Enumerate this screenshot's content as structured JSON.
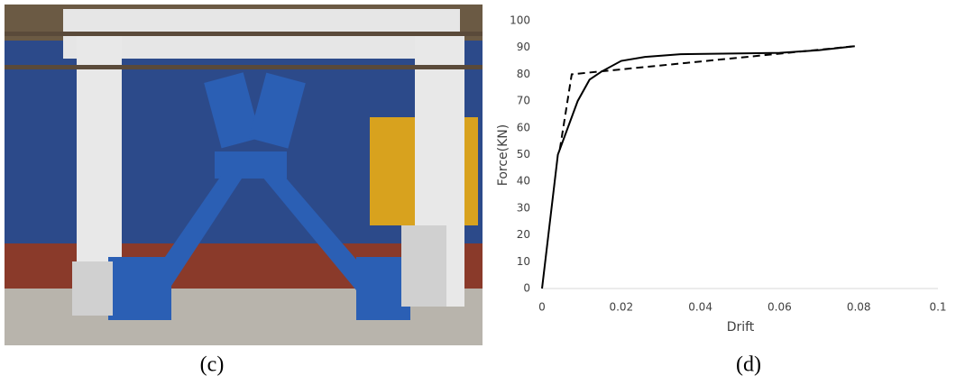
{
  "captions": [
    "(c)",
    "(d)"
  ],
  "chart_data": {
    "type": "line",
    "xlabel": "Drift",
    "ylabel": "Force(KN)",
    "xlim": [
      0,
      0.1
    ],
    "xticks": [
      0,
      0.02,
      0.04,
      0.06,
      0.08,
      0.1
    ],
    "ylim": [
      0,
      100
    ],
    "yticks": [
      0,
      10,
      20,
      30,
      40,
      50,
      60,
      70,
      80,
      90,
      100
    ],
    "grid": false,
    "series": [
      {
        "color": "#000000",
        "dash": false,
        "x": [
          0,
          0.004,
          0.007,
          0.009,
          0.012,
          0.015,
          0.02,
          0.026,
          0.035,
          0.05,
          0.06,
          0.07,
          0.079
        ],
        "values": [
          0,
          50,
          62,
          70,
          78,
          81,
          85,
          86.5,
          87.5,
          87.8,
          88,
          89,
          90.5
        ]
      },
      {
        "color": "#000000",
        "dash": true,
        "x": [
          0.0045,
          0.0075,
          0.079
        ],
        "values": [
          52,
          80,
          90.5
        ]
      }
    ]
  }
}
